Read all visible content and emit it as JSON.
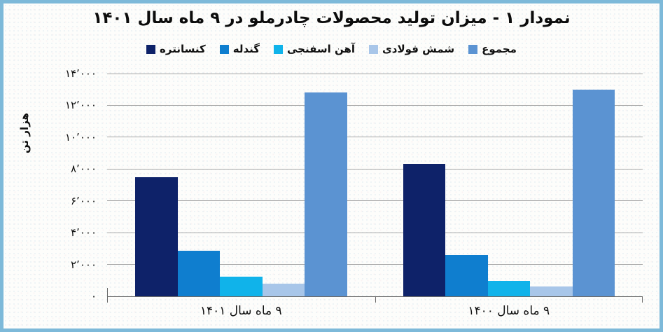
{
  "frame": {
    "border_color": "#7db9d9",
    "background_color": "#fdfdfb"
  },
  "chart_data": {
    "type": "bar",
    "title": "نمودار ۱ - میزان تولید محصولات چادرملو در ۹ ماه سال ۱۴۰۱",
    "ylabel": "هزار تن",
    "xlabel": "",
    "categories": [
      "۹ ماه سال ۱۴۰۱",
      "۹ ماه سال ۱۴۰۰"
    ],
    "series": [
      {
        "name": "کنسانتره",
        "color": "#0e2269",
        "values": [
          7500,
          8300
        ]
      },
      {
        "name": "گندله",
        "color": "#0f7ecf",
        "values": [
          2850,
          2600
        ]
      },
      {
        "name": "آهن اسفنجی",
        "color": "#10b3ea",
        "values": [
          1250,
          950
        ]
      },
      {
        "name": "شمش فولادی",
        "color": "#a8c6e9",
        "values": [
          800,
          600
        ]
      },
      {
        "name": "مجموع",
        "color": "#5b93d2",
        "values": [
          12800,
          13000
        ]
      }
    ],
    "ylim": [
      0,
      14000
    ],
    "ytick_step": 2000,
    "ytick_labels_top_to_bottom": [
      "۱۴٬۰۰۰",
      "۱۲٬۰۰۰",
      "۱۰٬۰۰۰",
      "۸٬۰۰۰",
      "۶٬۰۰۰",
      "۴٬۰۰۰",
      "۲٬۰۰۰",
      "۰"
    ],
    "grid": true,
    "gridline_color": "#a6a6a6",
    "axis_color": "#6b6b6b",
    "legend_position": "top",
    "legend_order_left_to_right": [
      "کنسانتره",
      "گندله",
      "آهن اسفنجی",
      "شمش فولادی",
      "مجموع"
    ]
  }
}
